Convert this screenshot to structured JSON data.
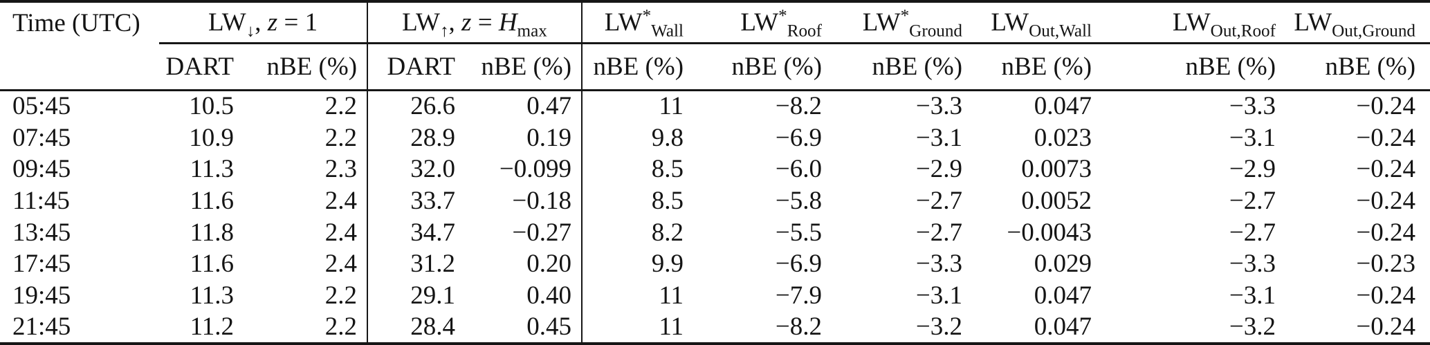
{
  "colors": {
    "background": "#ffffff",
    "text": "#141414",
    "rule": "#161616"
  },
  "table": {
    "headers": [
      {
        "parts": [
          {
            "t": "Time (UTC)"
          }
        ]
      },
      {
        "parts": [
          {
            "t": "LW"
          },
          {
            "sub": "↓"
          },
          {
            "t": ", "
          },
          {
            "i": "z"
          },
          {
            "t": " = 1"
          }
        ]
      },
      {
        "parts": [
          {
            "t": "LW"
          },
          {
            "sub": "↑"
          },
          {
            "t": ", "
          },
          {
            "i": "z"
          },
          {
            "t": " = "
          },
          {
            "i": "H"
          },
          {
            "sub": "max"
          }
        ]
      },
      {
        "parts": [
          {
            "t": "LW"
          },
          {
            "sup": "*"
          },
          {
            "sub": "Wall"
          }
        ]
      },
      {
        "parts": [
          {
            "t": "LW"
          },
          {
            "sup": "*"
          },
          {
            "sub": "Roof"
          }
        ]
      },
      {
        "parts": [
          {
            "t": "LW"
          },
          {
            "sup": "*"
          },
          {
            "sub": "Ground"
          }
        ]
      },
      {
        "parts": [
          {
            "t": "LW"
          },
          {
            "sub": "Out,Wall"
          }
        ]
      },
      {
        "parts": [
          {
            "t": "LW"
          },
          {
            "sub": "Out,Roof"
          }
        ]
      },
      {
        "parts": [
          {
            "t": "LW"
          },
          {
            "sub": "Out,Ground"
          }
        ]
      }
    ],
    "sub_headers": [
      "",
      "DART",
      "nBE (%)",
      "DART",
      "nBE (%)",
      "nBE (%)",
      "nBE (%)",
      "nBE (%)",
      "nBE (%)",
      "nBE (%)",
      "nBE (%)"
    ],
    "rows": [
      [
        "05:45",
        "10.5",
        "2.2",
        "26.6",
        "0.47",
        "11",
        "−8.2",
        "−3.3",
        "0.047",
        "−3.3",
        "−0.24"
      ],
      [
        "07:45",
        "10.9",
        "2.2",
        "28.9",
        "0.19",
        "9.8",
        "−6.9",
        "−3.1",
        "0.023",
        "−3.1",
        "−0.24"
      ],
      [
        "09:45",
        "11.3",
        "2.3",
        "32.0",
        "−0.099",
        "8.5",
        "−6.0",
        "−2.9",
        "0.0073",
        "−2.9",
        "−0.24"
      ],
      [
        "11:45",
        "11.6",
        "2.4",
        "33.7",
        "−0.18",
        "8.5",
        "−5.8",
        "−2.7",
        "0.0052",
        "−2.7",
        "−0.24"
      ],
      [
        "13:45",
        "11.8",
        "2.4",
        "34.7",
        "−0.27",
        "8.2",
        "−5.5",
        "−2.7",
        "−0.0043",
        "−2.7",
        "−0.24"
      ],
      [
        "17:45",
        "11.6",
        "2.4",
        "31.2",
        "0.20",
        "9.9",
        "−6.9",
        "−3.3",
        "0.029",
        "−3.3",
        "−0.23"
      ],
      [
        "19:45",
        "11.3",
        "2.2",
        "29.1",
        "0.40",
        "11",
        "−7.9",
        "−3.1",
        "0.047",
        "−3.1",
        "−0.24"
      ],
      [
        "21:45",
        "11.2",
        "2.2",
        "28.4",
        "0.45",
        "11",
        "−8.2",
        "−3.2",
        "0.047",
        "−3.2",
        "−0.24"
      ]
    ]
  }
}
